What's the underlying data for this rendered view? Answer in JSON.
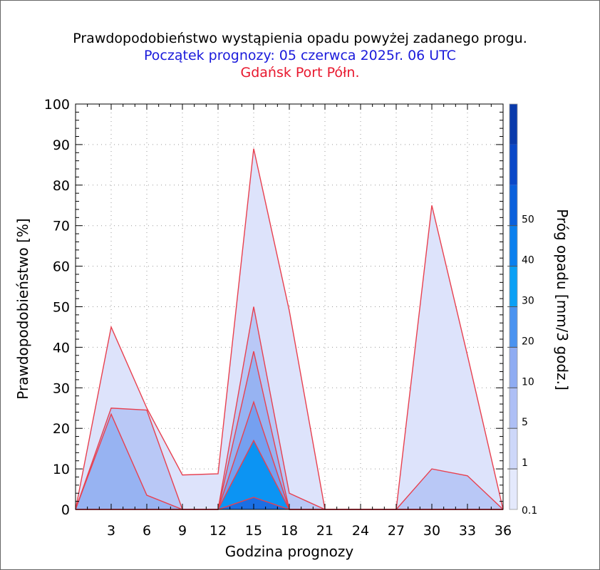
{
  "header": {
    "title": "Prawdopodobieństwo wystąpienia opadu powyżej zadanego progu.",
    "subtitle": "Początek prognozy: 05 czerwca 2025r. 06 UTC",
    "location": "Gdańsk Port Półn."
  },
  "colors": {
    "title": "#000000",
    "subtitle": "#1a1adb",
    "location": "#e8182e",
    "outline": "#e8404f"
  },
  "chart_data": {
    "type": "area",
    "xlabel": "Godzina prognozy",
    "ylabel": "Prawdopodobieństwo [%]",
    "xlim": [
      0,
      36
    ],
    "ylim": [
      0,
      100
    ],
    "x": [
      0,
      3,
      6,
      9,
      12,
      15,
      18,
      21,
      24,
      27,
      30,
      33,
      36
    ],
    "x_ticks": [
      "3",
      "6",
      "9",
      "12",
      "15",
      "18",
      "21",
      "24",
      "27",
      "30",
      "33",
      "36"
    ],
    "y_ticks": [
      "0",
      "10",
      "20",
      "30",
      "40",
      "50",
      "60",
      "70",
      "80",
      "90",
      "100"
    ],
    "grid": true,
    "series": [
      {
        "threshold": 0.1,
        "color": "#dde3fb",
        "values": [
          0,
          45,
          25,
          8.5,
          8.8,
          89,
          49,
          0,
          0,
          0,
          75,
          38,
          0
        ]
      },
      {
        "threshold": 1,
        "color": "#b9c8f6",
        "values": [
          0,
          25,
          24.5,
          0,
          0,
          50,
          4,
          0,
          0,
          0,
          10,
          8.3,
          0
        ]
      },
      {
        "threshold": 5,
        "color": "#97b3f2",
        "values": [
          0,
          23.5,
          3.5,
          0,
          0,
          39,
          0,
          0,
          0,
          0,
          0,
          0,
          0
        ]
      },
      {
        "threshold": 10,
        "color": "#75a0f0",
        "values": [
          0,
          0,
          0,
          0,
          0,
          26.5,
          0,
          0,
          0,
          0,
          0,
          0,
          0
        ]
      },
      {
        "threshold": 20,
        "color": "#0c94f3",
        "values": [
          0,
          0,
          0,
          0,
          0,
          17,
          0,
          0,
          0,
          0,
          0,
          0,
          0
        ]
      },
      {
        "threshold": 30,
        "color": "#1b6fe3",
        "values": [
          0,
          0,
          0,
          0,
          0,
          3,
          0,
          0,
          0,
          0,
          0,
          0,
          0
        ]
      }
    ],
    "colorbar": {
      "label": "Próg opadu [mm/3 godz.]",
      "ticks": [
        "0.1",
        "1",
        "5",
        "10",
        "20",
        "30",
        "40",
        "50"
      ],
      "colors": [
        "#e4e9fc",
        "#cdd7f9",
        "#aebff5",
        "#8facf2",
        "#4a93f0",
        "#0aa0f5",
        "#0a80ee",
        "#0a60dc",
        "#0a48c8",
        "#0a3aab"
      ]
    }
  }
}
